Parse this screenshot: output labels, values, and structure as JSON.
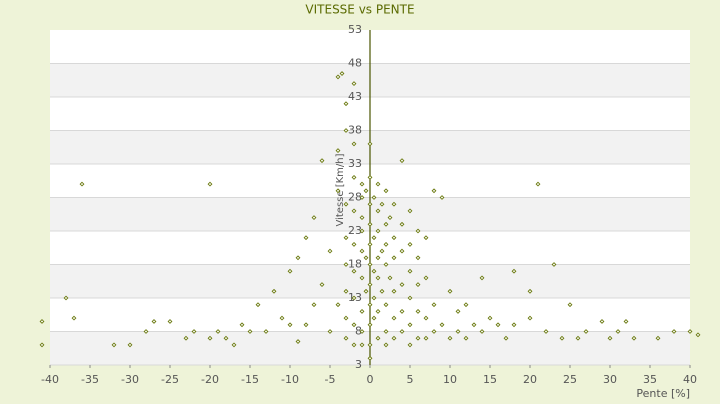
{
  "chart_data": {
    "type": "scatter",
    "title": "VITESSE vs PENTE",
    "x_label": "Pente [%]",
    "y_label": "Vitesse [Km/h]",
    "color": "#6b7a10",
    "grid": true,
    "xlim": [
      -40,
      40
    ],
    "xticks": [
      -40,
      -35,
      -30,
      -25,
      -20,
      -15,
      -10,
      -5,
      0,
      5,
      10,
      15,
      20,
      25,
      30,
      35,
      40
    ],
    "ylim": [
      3,
      53
    ],
    "yticks": [
      3,
      8,
      13,
      18,
      23,
      28,
      33,
      38,
      43,
      48,
      53
    ],
    "x": [
      -41,
      -41,
      -38,
      -37,
      -36,
      -32,
      -30,
      -28,
      -27,
      -25,
      -23,
      -22,
      -20,
      -20,
      -19,
      -18,
      -17,
      -16,
      -15,
      -14,
      -13,
      -12,
      -11,
      -10,
      -10,
      -9,
      -9,
      -8,
      -8,
      -7,
      -7,
      -6,
      -6,
      -5,
      -5,
      -4,
      -4,
      -3.5,
      -3,
      -3,
      -2,
      -2,
      -4,
      -4,
      -3,
      -3,
      -3,
      -3,
      -3,
      -3,
      -2,
      -2,
      -2,
      -2,
      -2,
      -2,
      -2,
      -1,
      -1,
      -1,
      -1,
      -1,
      -1,
      -1,
      -1,
      -1,
      -0.5,
      -0.5,
      -0.5,
      0,
      0,
      0,
      0,
      0,
      0,
      0,
      0,
      0,
      0,
      0,
      0.5,
      0.5,
      0.5,
      0.5,
      0.5,
      1,
      1,
      1,
      1,
      1,
      1,
      1,
      1.5,
      1.5,
      1.5,
      2,
      2,
      2,
      2,
      2,
      2,
      2,
      2.5,
      2.5,
      3,
      3,
      3,
      3,
      3,
      3,
      4,
      4,
      4,
      4,
      4,
      4,
      5,
      5,
      5,
      5,
      5,
      5,
      6,
      6,
      6,
      6,
      6,
      7,
      7,
      7,
      7,
      8,
      8,
      8,
      9,
      9,
      10,
      10,
      11,
      11,
      12,
      12,
      13,
      14,
      14,
      15,
      16,
      17,
      18,
      18,
      20,
      20,
      21,
      22,
      23,
      24,
      25,
      26,
      27,
      29,
      30,
      31,
      32,
      33,
      36,
      38,
      40,
      41
    ],
    "values": [
      9.5,
      6,
      13,
      10,
      30,
      6,
      6,
      8,
      9.5,
      9.5,
      7,
      8,
      7,
      30,
      8,
      7,
      6,
      9,
      8,
      12,
      8,
      14,
      10,
      17,
      9,
      19,
      6.5,
      22,
      9,
      12,
      25,
      15,
      33.5,
      8,
      20,
      46,
      12,
      46.5,
      42,
      38,
      45,
      36,
      35,
      29,
      27,
      22,
      18,
      14,
      10,
      7,
      31,
      26,
      21,
      17,
      13,
      9,
      6,
      30,
      25,
      28,
      20,
      23,
      16,
      11,
      8,
      6,
      29,
      19,
      14,
      36,
      31,
      27,
      24,
      21,
      18,
      15,
      12,
      9,
      6,
      4,
      28,
      22,
      17,
      13,
      10,
      30,
      26,
      23,
      19,
      16,
      11,
      7,
      27,
      20,
      14,
      29,
      24,
      21,
      18,
      12,
      8,
      6,
      25,
      16,
      27,
      22,
      19,
      14,
      10,
      7,
      33.5,
      24,
      20,
      15,
      11,
      8,
      26,
      21,
      17,
      13,
      9,
      6,
      23,
      19,
      15,
      11,
      7,
      22,
      16,
      10,
      7,
      29,
      12,
      8,
      28,
      9,
      14,
      7,
      11,
      8,
      12,
      7,
      9,
      16,
      8,
      10,
      9,
      7,
      17,
      9,
      14,
      10,
      30,
      8,
      18,
      7,
      12,
      7,
      8,
      9.5,
      7,
      8,
      9.5,
      7,
      7,
      8,
      8,
      7.5
    ]
  }
}
